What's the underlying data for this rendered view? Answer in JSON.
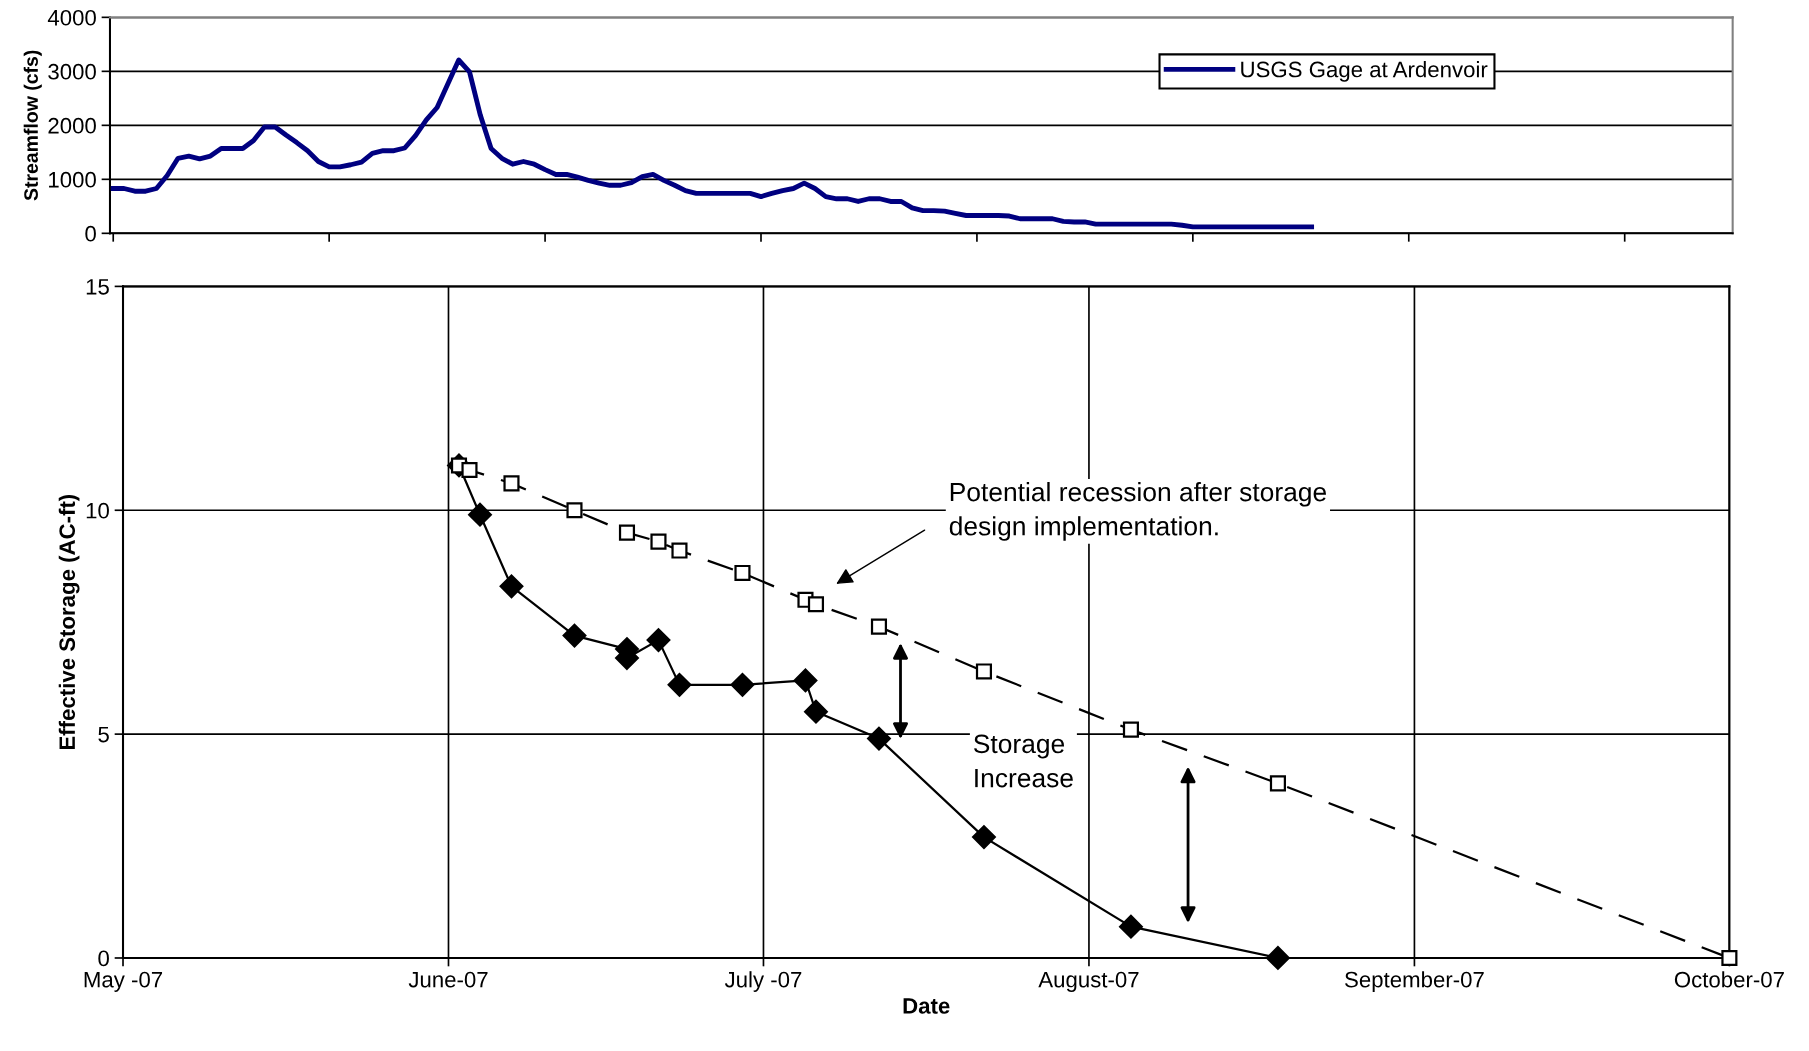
{
  "chart_data": [
    {
      "type": "line",
      "ylabel": "Streamflow (cfs)",
      "categories": [
        null,
        null,
        null,
        null,
        null,
        null,
        null,
        null,
        null,
        null,
        null,
        null,
        null,
        null,
        null,
        null,
        null,
        null,
        null,
        null,
        null,
        null,
        null,
        null,
        null,
        null,
        null,
        null,
        null,
        null,
        null,
        null,
        null,
        null,
        null,
        null,
        null,
        null,
        null,
        null,
        null,
        null,
        null,
        null,
        null,
        null,
        null,
        null,
        null,
        null,
        null,
        null,
        null,
        null,
        null,
        null,
        null,
        null,
        null,
        null,
        null,
        null,
        null,
        null,
        null,
        null,
        null,
        null,
        null,
        null,
        null,
        null,
        null,
        null,
        null,
        null,
        null,
        null,
        null,
        null,
        null,
        null,
        null,
        null,
        null,
        null,
        null,
        null,
        null,
        null,
        null,
        null,
        null,
        null,
        null,
        null,
        null,
        null,
        null,
        null,
        null,
        null,
        null,
        null,
        null,
        null,
        null,
        null,
        null,
        null,
        null,
        null,
        null,
        null,
        null,
        null,
        null,
        null,
        null,
        null,
        null,
        null,
        null,
        null,
        null,
        null,
        null,
        null,
        null,
        null,
        null,
        null,
        null,
        null,
        null,
        null,
        null,
        null,
        null,
        null,
        null,
        null,
        null,
        null,
        null,
        null,
        null,
        null,
        null,
        null,
        null
      ],
      "ylim": [
        0,
        4000
      ],
      "yticks": [
        0,
        1000,
        2000,
        3000,
        4000
      ],
      "grid": "y",
      "legend": "top",
      "marker": "none",
      "series": [
        {
          "name": "USGS Gage at Ardenvoir",
          "color": "#000080",
          "line_style": "solid",
          "values": [
            830,
            830,
            780,
            780,
            830,
            1070,
            1390,
            1430,
            1380,
            1430,
            1570,
            1570,
            1570,
            1720,
            1970,
            1970,
            1820,
            1680,
            1530,
            1330,
            1230,
            1230,
            1270,
            1320,
            1480,
            1530,
            1530,
            1580,
            1810,
            2100,
            2330,
            2770,
            3210,
            2990,
            2190,
            1570,
            1390,
            1280,
            1330,
            1280,
            1180,
            1090,
            1090,
            1040,
            980,
            930,
            890,
            890,
            940,
            1050,
            1090,
            980,
            890,
            790,
            740,
            740,
            740,
            740,
            740,
            740,
            680,
            740,
            790,
            830,
            930,
            830,
            680,
            640,
            640,
            590,
            640,
            640,
            590,
            590,
            470,
            420,
            420,
            410,
            370,
            330,
            330,
            330,
            330,
            320,
            270,
            270,
            270,
            270,
            220,
            210,
            210,
            170,
            170,
            170,
            170,
            170,
            170,
            170,
            170,
            150,
            120,
            120,
            120,
            120,
            120,
            120,
            120,
            120,
            120,
            120,
            120,
            120,
            null,
            null,
            null,
            null,
            null,
            null,
            null,
            null,
            null,
            null,
            null,
            null,
            null,
            null,
            null,
            null,
            null,
            null,
            null,
            null,
            null,
            null,
            null,
            null,
            null,
            null,
            null,
            null,
            null,
            null,
            null,
            null,
            null,
            null,
            null,
            null,
            null,
            null,
            null
          ]
        }
      ]
    },
    {
      "type": "line",
      "xlabel": "Date",
      "ylabel": "Effective Storage (AC-ft)",
      "xlim": [
        "2007-05-01",
        "2007-10-01"
      ],
      "xticks": [
        {
          "value": "2007-05-01",
          "label": "May -07"
        },
        {
          "value": "2007-06-01",
          "label": "June-07"
        },
        {
          "value": "2007-07-01",
          "label": "July -07"
        },
        {
          "value": "2007-08-01",
          "label": "August-07"
        },
        {
          "value": "2007-09-01",
          "label": "September-07"
        },
        {
          "value": "2007-10-01",
          "label": "October-07"
        }
      ],
      "ylim": [
        0,
        15
      ],
      "yticks": [
        0,
        5,
        10,
        15
      ],
      "grid": true,
      "annotations": [
        "Potential recession after storage\ndesign implementation.",
        "Storage\nIncrease"
      ],
      "series": [
        {
          "color": "#000000",
          "marker": "diamond",
          "line_style": "solid",
          "x": [
            "2007-06-02",
            "2007-06-04",
            "2007-06-07",
            "2007-06-13",
            "2007-06-18",
            "2007-06-18",
            "2007-06-21",
            "2007-06-23",
            "2007-06-29",
            "2007-07-05",
            "2007-07-06",
            "2007-07-12",
            "2007-07-22",
            "2007-08-05",
            "2007-08-19"
          ],
          "values": [
            11.0,
            9.9,
            8.3,
            7.2,
            6.9,
            6.7,
            7.1,
            6.1,
            6.1,
            6.2,
            5.5,
            4.9,
            2.7,
            0.7,
            0
          ]
        },
        {
          "color": "#000000",
          "marker": "square",
          "line_style": "dashed",
          "x": [
            "2007-06-02",
            "2007-06-03",
            "2007-06-07",
            "2007-06-13",
            "2007-06-18",
            "2007-06-21",
            "2007-06-23",
            "2007-06-29",
            "2007-07-05",
            "2007-07-06",
            "2007-07-12",
            "2007-07-22",
            "2007-08-05",
            "2007-08-19",
            "2007-10-01"
          ],
          "values": [
            11.0,
            10.9,
            10.6,
            10.0,
            9.5,
            9.3,
            9.1,
            8.6,
            8.0,
            7.9,
            7.4,
            6.4,
            5.1,
            3.9,
            0
          ]
        }
      ]
    }
  ]
}
